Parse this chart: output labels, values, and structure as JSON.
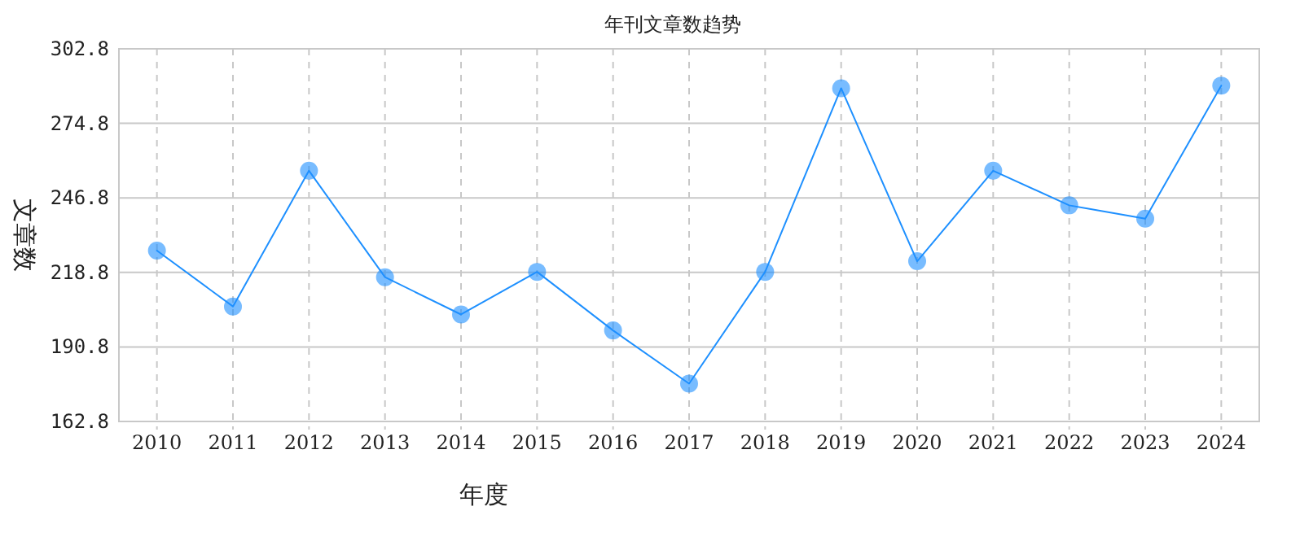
{
  "chart_data": {
    "type": "line",
    "title": "年刊文章数趋势",
    "xlabel": "年度",
    "ylabel": "文章数",
    "categories": [
      "2010",
      "2011",
      "2012",
      "2013",
      "2014",
      "2015",
      "2016",
      "2017",
      "2018",
      "2019",
      "2020",
      "2021",
      "2022",
      "2023",
      "2024"
    ],
    "series": [
      {
        "color": "#1e90ff",
        "values": [
          227,
          206,
          257,
          217,
          203,
          219,
          197,
          177,
          219,
          288,
          223,
          257,
          244,
          239,
          289
        ]
      }
    ],
    "ylim": [
      162.8,
      302.8
    ],
    "yticks": [
      {
        "value": 162.8,
        "label": "162.8"
      },
      {
        "value": 190.8,
        "label": "190.8"
      },
      {
        "value": 218.8,
        "label": "218.8"
      },
      {
        "value": 246.8,
        "label": "246.8"
      },
      {
        "value": 274.8,
        "label": "274.8"
      },
      {
        "value": 302.8,
        "label": "302.8"
      }
    ],
    "grid": true,
    "marker": "circle",
    "line_style": "solid"
  }
}
